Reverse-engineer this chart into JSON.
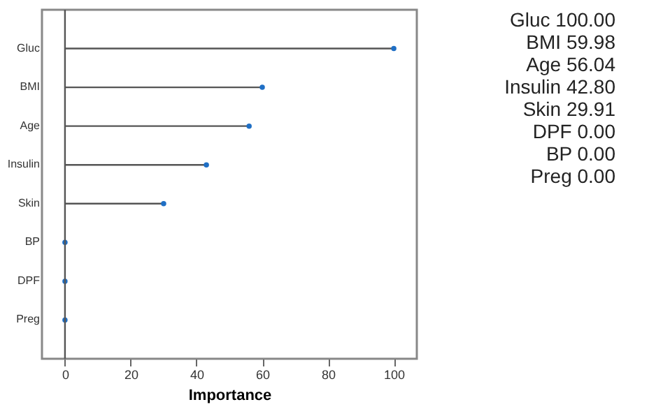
{
  "chart_data": {
    "type": "lollipop",
    "orientation": "horizontal",
    "xlabel": "Importance",
    "categories": [
      "Gluc",
      "BMI",
      "Age",
      "Insulin",
      "Skin",
      "BP",
      "DPF",
      "Preg"
    ],
    "values": [
      100,
      60,
      56,
      43,
      30,
      0,
      0,
      0
    ],
    "annotations": [
      "Gluc 100.00",
      "BMI 59.98",
      "Age 56.04",
      "Insulin 42.80",
      "Skin 29.91",
      "DPF 0.00",
      "BP 0.00",
      "Preg 0.00"
    ],
    "color": "#1f6fc5",
    "xlim": [
      -7,
      107
    ],
    "xticks": [
      0,
      20,
      40,
      60,
      80,
      100
    ],
    "grid": false,
    "ref_lines": [
      {
        "axis": "x",
        "value": 0,
        "color": "#555555"
      }
    ]
  }
}
